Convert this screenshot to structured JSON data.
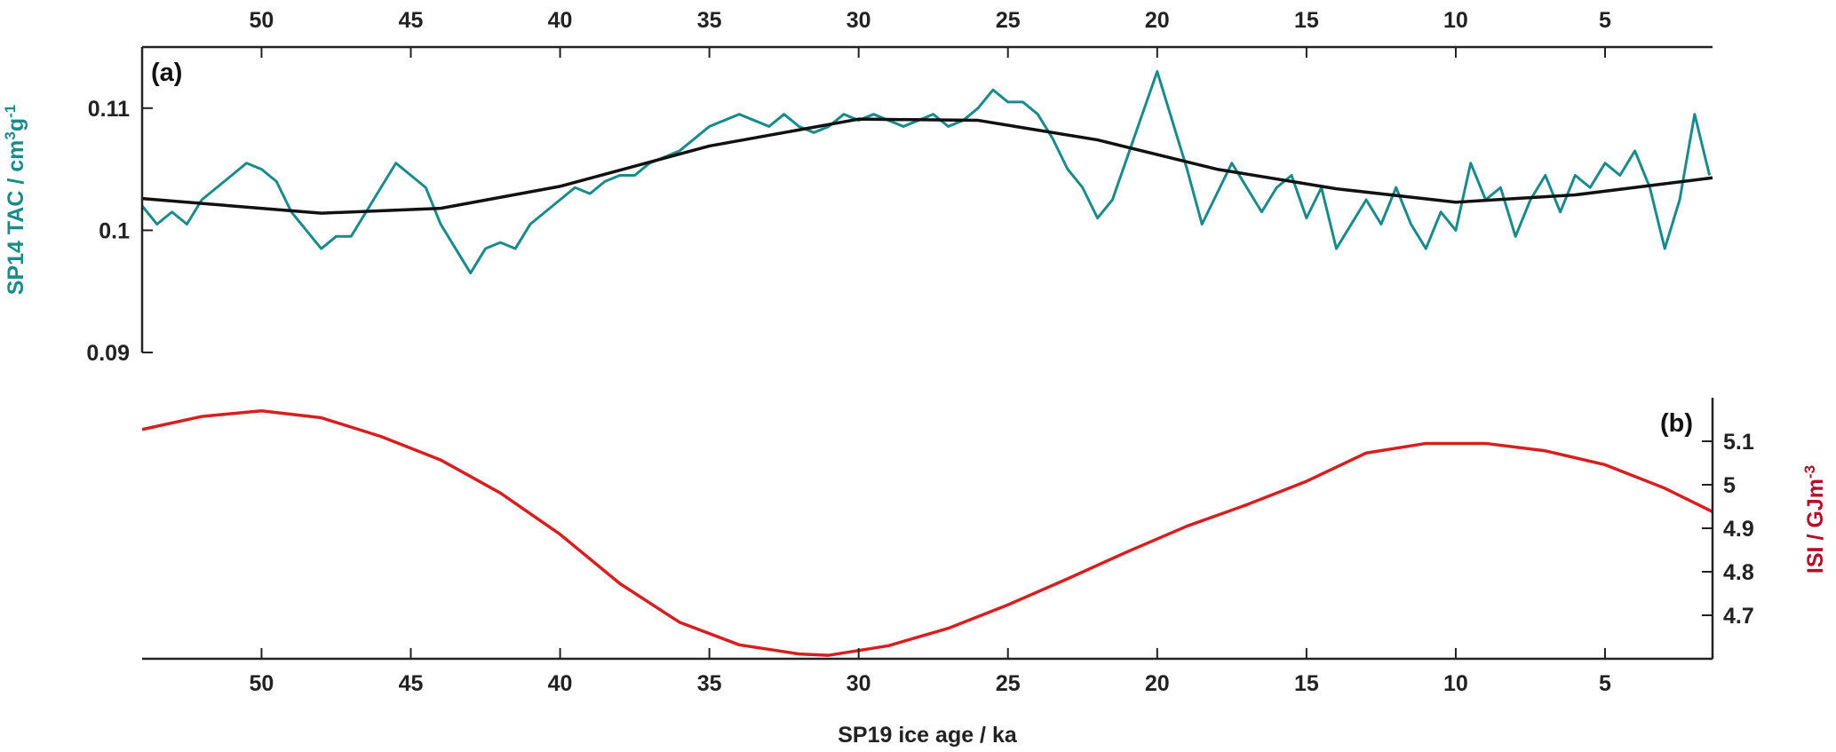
{
  "chart_data": [
    {
      "type": "line",
      "annotation": "(a)",
      "xaxis_side": "top",
      "yaxis_side": "left",
      "ylabel_parts": [
        "SP14 TAC / cm",
        "3",
        "g",
        "-1"
      ],
      "ylabel_color": "#1b8a8a",
      "xlim": [
        54,
        1.4
      ],
      "xticks": [
        50,
        45,
        40,
        35,
        30,
        25,
        20,
        15,
        10,
        5
      ],
      "ylim": [
        0.09,
        0.115
      ],
      "yticks": [
        0.09,
        0.1,
        0.11
      ],
      "series": [
        {
          "color": "#1b8a8a",
          "width": 3,
          "x": [
            54,
            53.5,
            53,
            52.5,
            52,
            51.5,
            51,
            50.5,
            50,
            49.5,
            49,
            48.5,
            48,
            47.5,
            47,
            46.5,
            46,
            45.5,
            45,
            44.5,
            44,
            43.5,
            43,
            42.5,
            42,
            41.5,
            41,
            40.5,
            40,
            39.5,
            39,
            38.5,
            38,
            37.5,
            37,
            36.5,
            36,
            35.5,
            35,
            34.5,
            34,
            33.5,
            33,
            32.5,
            32,
            31.5,
            31,
            30.5,
            30,
            29.5,
            29,
            28.5,
            28,
            27.5,
            27,
            26.5,
            26,
            25.5,
            25,
            24.5,
            24,
            23.5,
            23,
            22.5,
            22,
            21.5,
            21,
            20.5,
            20,
            19.5,
            19,
            18.5,
            18,
            17.5,
            17,
            16.5,
            16,
            15.5,
            15,
            14.5,
            14,
            13.5,
            13,
            12.5,
            12,
            11.5,
            11,
            10.5,
            10,
            9.5,
            9,
            8.5,
            8,
            7.5,
            7,
            6.5,
            6,
            5.5,
            5,
            4.5,
            4,
            3.5,
            3,
            2.5,
            2,
            1.5
          ],
          "values": [
            0.102,
            0.1005,
            0.1015,
            0.1005,
            0.1025,
            0.1035,
            0.1045,
            0.1055,
            0.105,
            0.104,
            0.1015,
            0.1,
            0.0985,
            0.0995,
            0.0995,
            0.1015,
            0.1035,
            0.1055,
            0.1045,
            0.1035,
            0.1005,
            0.0985,
            0.0965,
            0.0985,
            0.099,
            0.0985,
            0.1005,
            0.1015,
            0.1025,
            0.1035,
            0.103,
            0.104,
            0.1045,
            0.1045,
            0.1055,
            0.106,
            0.1065,
            0.1075,
            0.1085,
            0.109,
            0.1095,
            0.109,
            0.1085,
            0.1095,
            0.1085,
            0.108,
            0.1085,
            0.1095,
            0.109,
            0.1095,
            0.109,
            0.1085,
            0.109,
            0.1095,
            0.1085,
            0.109,
            0.11,
            0.1115,
            0.1105,
            0.1105,
            0.1095,
            0.1075,
            0.105,
            0.1035,
            0.101,
            0.1025,
            0.106,
            0.1095,
            0.113,
            0.109,
            0.105,
            0.1005,
            0.103,
            0.1055,
            0.1035,
            0.1015,
            0.1035,
            0.1045,
            0.101,
            0.1035,
            0.0985,
            0.1005,
            0.1025,
            0.1005,
            0.1035,
            0.1005,
            0.0985,
            0.1015,
            0.1,
            0.1055,
            0.1025,
            0.1035,
            0.0995,
            0.1025,
            0.1045,
            0.1015,
            0.1045,
            0.1035,
            0.1055,
            0.1045,
            0.1065,
            0.1035,
            0.0985,
            0.1025,
            0.1095,
            0.1045
          ]
        },
        {
          "color": "#111111",
          "width": 3.5,
          "x": [
            54,
            48,
            44,
            40,
            35,
            30,
            26,
            22,
            18,
            14,
            10,
            6,
            1.4
          ],
          "values": [
            0.1026,
            0.1014,
            0.1018,
            0.1036,
            0.1069,
            0.1091,
            0.109,
            0.1074,
            0.105,
            0.1034,
            0.1023,
            0.1029,
            0.1043
          ]
        }
      ]
    },
    {
      "type": "line",
      "annotation": "(b)",
      "xaxis_side": "bottom",
      "yaxis_side": "right",
      "xlabel": "SP19 ice age / ka",
      "ylabel_parts": [
        "ISI / GJm",
        "-3"
      ],
      "ylabel_color": "#b0102a",
      "xlim": [
        54,
        1.4
      ],
      "xticks": [
        50,
        45,
        40,
        35,
        30,
        25,
        20,
        15,
        10,
        5
      ],
      "ylim": [
        4.6,
        5.2
      ],
      "yticks": [
        4.7,
        4.8,
        4.9,
        5,
        5.1
      ],
      "series": [
        {
          "color": "#d42020",
          "width": 3.5,
          "x": [
            54,
            52,
            50,
            48,
            46,
            44,
            42,
            40,
            38,
            36,
            34,
            32,
            31,
            29,
            27,
            25,
            23,
            21,
            19,
            17,
            15,
            13,
            11,
            9,
            7,
            5,
            3,
            1.4
          ],
          "values": [
            5.127,
            5.157,
            5.17,
            5.154,
            5.111,
            5.057,
            4.981,
            4.886,
            4.773,
            4.684,
            4.632,
            4.611,
            4.608,
            4.63,
            4.67,
            4.724,
            4.784,
            4.846,
            4.905,
            4.954,
            5.008,
            5.073,
            5.095,
            5.095,
            5.078,
            5.046,
            4.992,
            4.938
          ]
        }
      ]
    }
  ]
}
